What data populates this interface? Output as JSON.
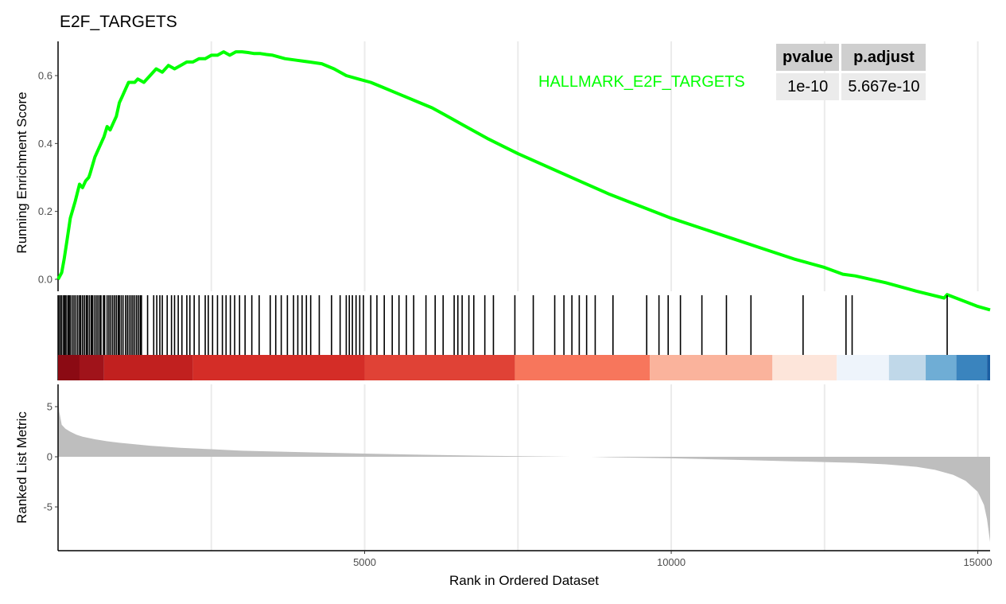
{
  "colors": {
    "running_es": "#00ff00",
    "hit": "#000000",
    "metric_fill": "#bebebe",
    "grid": "#ebebeb",
    "axis": "#000000",
    "table_header_bg": "#cfcfcf",
    "table_cell_bg": "#ebebeb"
  },
  "chart_data": {
    "type": "line",
    "title": "E2F_TARGETS",
    "xlabel": "Rank in Ordered Dataset",
    "xlim": [
      0,
      15200
    ],
    "xticks": [
      5000,
      10000,
      15000
    ],
    "grid": true,
    "legend_position": "top-right",
    "gene_set_label": "HALLMARK_E2F_TARGETS",
    "stats_table": {
      "columns": [
        "pvalue",
        "p.adjust"
      ],
      "rows": [
        [
          "1e-10",
          "5.667e-10"
        ]
      ]
    },
    "panels": [
      {
        "name": "running-enrichment",
        "ylabel": "Running Enrichment Score",
        "ylim": [
          0,
          0.69
        ],
        "yticks": [
          0.0,
          0.2,
          0.4,
          0.6
        ],
        "ytick_labels": [
          "0.0",
          "0.2",
          "0.4",
          "0.6"
        ],
        "series": [
          {
            "name": "HALLMARK_E2F_TARGETS",
            "x": [
              0,
              60,
              100,
              150,
              200,
              280,
              350,
              400,
              450,
              500,
              520,
              600,
              650,
              700,
              750,
              800,
              850,
              900,
              950,
              1000,
              1050,
              1100,
              1150,
              1250,
              1300,
              1400,
              1500,
              1600,
              1700,
              1800,
              1900,
              2000,
              2100,
              2200,
              2300,
              2400,
              2500,
              2600,
              2700,
              2800,
              2900,
              3000,
              3100,
              3200,
              3300,
              3400,
              3500,
              3700,
              3900,
              4100,
              4300,
              4500,
              4700,
              4900,
              5100,
              5300,
              5500,
              5700,
              5900,
              6100,
              6200,
              6400,
              6600,
              6800,
              7000,
              7500,
              8000,
              8500,
              9000,
              9500,
              10000,
              10500,
              11000,
              11500,
              12000,
              12500,
              12800,
              13000,
              13500,
              14000,
              14450,
              14500,
              15000,
              15200
            ],
            "y": [
              0.0,
              0.02,
              0.06,
              0.12,
              0.18,
              0.23,
              0.28,
              0.27,
              0.29,
              0.3,
              0.31,
              0.36,
              0.38,
              0.4,
              0.42,
              0.45,
              0.44,
              0.46,
              0.48,
              0.52,
              0.54,
              0.56,
              0.58,
              0.58,
              0.59,
              0.58,
              0.6,
              0.62,
              0.61,
              0.63,
              0.62,
              0.63,
              0.64,
              0.64,
              0.65,
              0.65,
              0.66,
              0.66,
              0.67,
              0.66,
              0.67,
              0.67,
              0.668,
              0.665,
              0.665,
              0.662,
              0.66,
              0.65,
              0.645,
              0.64,
              0.635,
              0.62,
              0.6,
              0.59,
              0.58,
              0.565,
              0.55,
              0.535,
              0.52,
              0.505,
              0.495,
              0.475,
              0.455,
              0.435,
              0.415,
              0.37,
              0.33,
              0.29,
              0.25,
              0.215,
              0.18,
              0.15,
              0.12,
              0.09,
              0.06,
              0.035,
              0.015,
              0.01,
              -0.01,
              -0.035,
              -0.055,
              -0.045,
              -0.08,
              -0.09
            ]
          }
        ]
      },
      {
        "name": "hits",
        "gene_hit_ranks": [
          10,
          35,
          60,
          90,
          110,
          130,
          160,
          180,
          200,
          230,
          260,
          290,
          320,
          350,
          370,
          400,
          430,
          460,
          480,
          510,
          540,
          560,
          590,
          620,
          650,
          680,
          700,
          740,
          760,
          800,
          830,
          860,
          890,
          920,
          950,
          980,
          1000,
          1030,
          1060,
          1100,
          1130,
          1160,
          1190,
          1220,
          1250,
          1280,
          1310,
          1340,
          1360,
          1460,
          1560,
          1610,
          1660,
          1700,
          1780,
          1850,
          1900,
          1960,
          2020,
          2100,
          2150,
          2220,
          2300,
          2400,
          2450,
          2520,
          2600,
          2680,
          2740,
          2810,
          2880,
          2960,
          3050,
          3160,
          3280,
          3460,
          3550,
          3640,
          3740,
          3840,
          3910,
          3980,
          4050,
          4120,
          4260,
          4460,
          4600,
          4700,
          4750,
          4800,
          4860,
          4920,
          4980,
          5100,
          5200,
          5320,
          5450,
          5560,
          5680,
          5800,
          6000,
          6150,
          6280,
          6460,
          6520,
          6590,
          6700,
          6780,
          6960,
          7100,
          7450,
          7750,
          8100,
          8250,
          8380,
          8500,
          8620,
          8760,
          9050,
          9600,
          9800,
          9950,
          10150,
          10500,
          10900,
          11300,
          12150,
          12850,
          12950,
          14500
        ]
      },
      {
        "name": "ranked-list-metric",
        "ylabel": "Ranked List Metric",
        "ylim": [
          -8.7,
          7
        ],
        "yticks": [
          5,
          0,
          -5
        ],
        "ytick_labels": [
          "5",
          "0",
          "-5"
        ],
        "gap_x": [
          8350,
          8700
        ],
        "metric_curve": {
          "x": [
            0,
            20,
            60,
            120,
            200,
            300,
            400,
            600,
            800,
            1000,
            1500,
            2000,
            2500,
            3000,
            4000,
            5000,
            6000,
            7000,
            8000,
            8350,
            8700,
            9000,
            10000,
            11000,
            12000,
            13000,
            13500,
            14000,
            14300,
            14600,
            14800,
            15000,
            15100,
            15150,
            15200
          ],
          "y": [
            6.3,
            4.5,
            3.2,
            2.8,
            2.5,
            2.2,
            2.0,
            1.75,
            1.55,
            1.4,
            1.1,
            0.9,
            0.75,
            0.6,
            0.45,
            0.32,
            0.2,
            0.1,
            0.03,
            0.0,
            0.0,
            -0.05,
            -0.15,
            -0.3,
            -0.45,
            -0.6,
            -0.75,
            -1.0,
            -1.3,
            -1.8,
            -2.4,
            -3.5,
            -4.8,
            -6.2,
            -8.5
          ]
        },
        "heat_bands": [
          {
            "x0": 0,
            "x1": 350,
            "color": "#8b0a13"
          },
          {
            "x0": 350,
            "x1": 750,
            "color": "#a0131a"
          },
          {
            "x0": 750,
            "x1": 2200,
            "color": "#c1201f"
          },
          {
            "x0": 2200,
            "x1": 5000,
            "color": "#d42d27"
          },
          {
            "x0": 5000,
            "x1": 7450,
            "color": "#e04236"
          },
          {
            "x0": 7450,
            "x1": 9650,
            "color": "#f7765c"
          },
          {
            "x0": 9650,
            "x1": 11650,
            "color": "#fab39c"
          },
          {
            "x0": 11650,
            "x1": 12700,
            "color": "#fde5da"
          },
          {
            "x0": 12700,
            "x1": 13550,
            "color": "#eef4fb"
          },
          {
            "x0": 13550,
            "x1": 14150,
            "color": "#c0d8e9"
          },
          {
            "x0": 14150,
            "x1": 14650,
            "color": "#6fadd5"
          },
          {
            "x0": 14650,
            "x1": 15150,
            "color": "#3a84be"
          },
          {
            "x0": 15150,
            "x1": 15200,
            "color": "#1b5fa3"
          }
        ]
      }
    ]
  }
}
